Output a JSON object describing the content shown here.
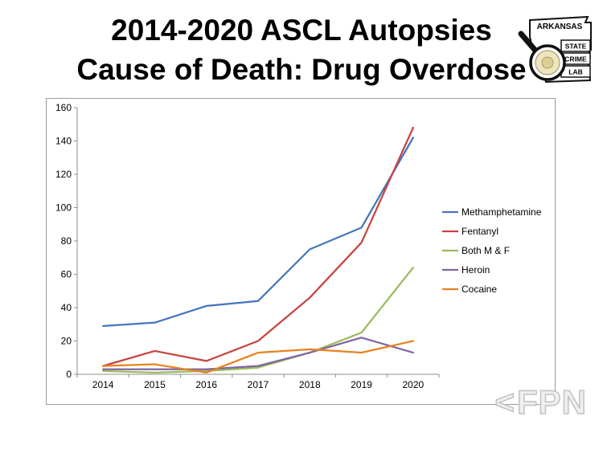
{
  "title": {
    "line1": "2014-2020 ASCL Autopsies",
    "line2": "Cause of Death: Drug Overdose"
  },
  "logo": {
    "arkansas": "ARKANSAS",
    "boxes": [
      "STATE",
      "CRIME",
      "LAB"
    ]
  },
  "watermark": {
    "symbol": "<",
    "text": "FPN"
  },
  "chart_data": {
    "type": "line",
    "title": "",
    "xlabel": "",
    "ylabel": "",
    "categories": [
      "2014",
      "2015",
      "2016",
      "2017",
      "2018",
      "2019",
      "2020"
    ],
    "series": [
      {
        "name": "Methamphetamine",
        "color": "#4575BE",
        "values": [
          29,
          31,
          41,
          44,
          75,
          88,
          142
        ]
      },
      {
        "name": "Fentanyl",
        "color": "#C8443F",
        "values": [
          5,
          14,
          8,
          20,
          46,
          79,
          148
        ]
      },
      {
        "name": "Both M & F",
        "color": "#9BBB59",
        "values": [
          2,
          1,
          2,
          4,
          13,
          25,
          64
        ]
      },
      {
        "name": "Heroin",
        "color": "#8064A2",
        "values": [
          3,
          3,
          3,
          5,
          13,
          22,
          13
        ]
      },
      {
        "name": "Cocaine",
        "color": "#E8821E",
        "values": [
          5,
          6,
          1,
          13,
          15,
          13,
          20
        ]
      }
    ],
    "ylim": [
      0,
      160
    ],
    "ytick_step": 20,
    "grid": false,
    "legend_position": "right",
    "axis_color": "#8c8c8c"
  }
}
